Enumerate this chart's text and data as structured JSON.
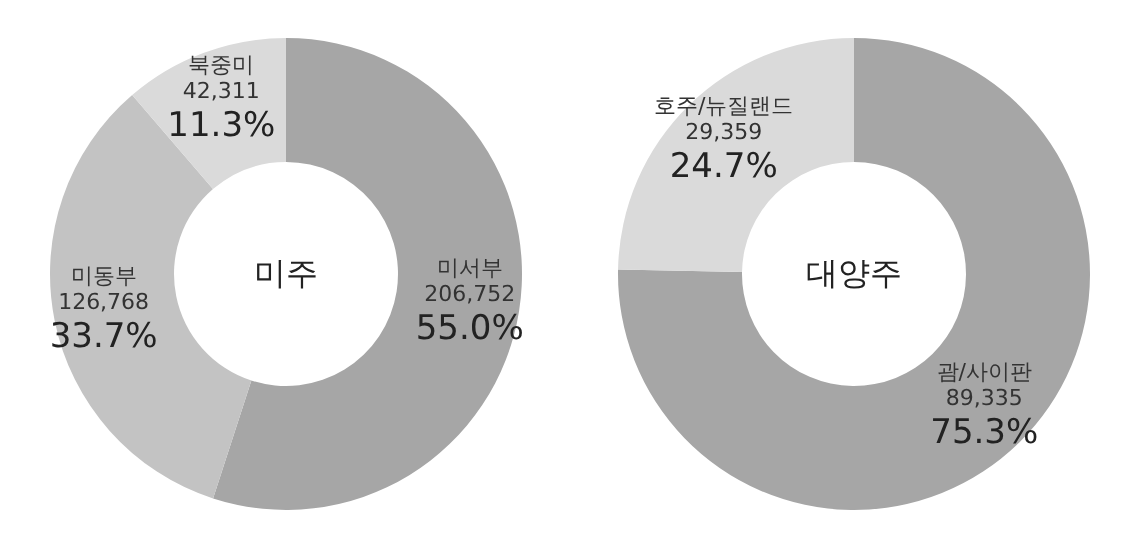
{
  "chart_data": [
    {
      "type": "donut",
      "title": "미주",
      "categories": [
        "미서부",
        "미동부",
        "북중미"
      ],
      "values": [
        55.0,
        33.7,
        11.3
      ],
      "colors": [
        "#a6a6a6",
        "#c3c3c3",
        "#dadada"
      ],
      "value_labels": [
        "55.0%",
        "33.7%",
        "11.3%"
      ],
      "annotations": [
        "206,752",
        "126,768",
        "42,311"
      ]
    },
    {
      "type": "donut",
      "title": "대양주",
      "categories": [
        "괌/사이판",
        "호주/뉴질랜드"
      ],
      "values": [
        75.3,
        24.7
      ],
      "colors": [
        "#a6a6a6",
        "#dadada"
      ],
      "value_labels": [
        "75.3%",
        "24.7%"
      ],
      "annotations": [
        "89,335",
        "29,359"
      ]
    }
  ]
}
